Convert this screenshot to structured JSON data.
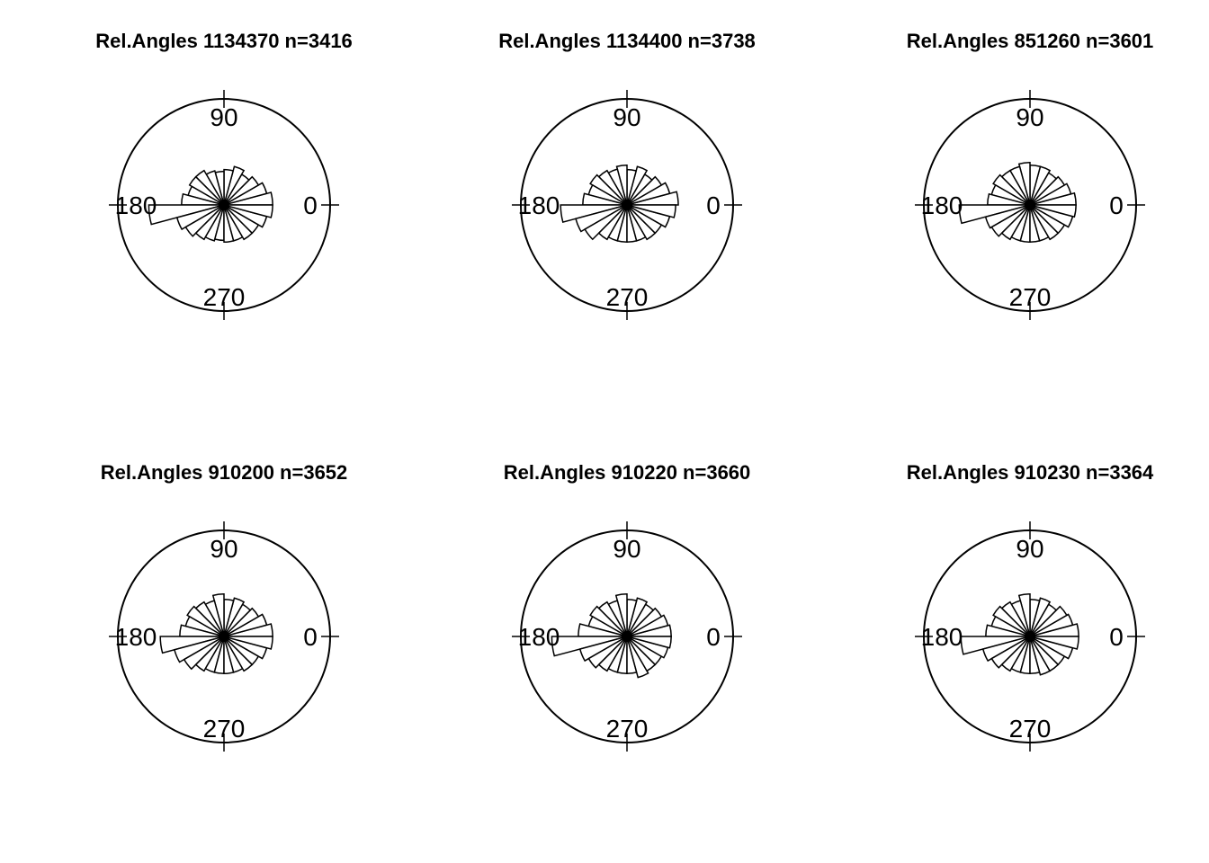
{
  "chart_data": [
    {
      "type": "rose",
      "title": "Rel.Angles 1134370 n=3416",
      "angle_labels": [
        "0",
        "90",
        "180",
        "270"
      ],
      "bin_width_deg": 15,
      "radius_max": 120,
      "values": [
        55,
        50,
        45,
        40,
        45,
        40,
        38,
        40,
        45,
        45,
        42,
        48,
        85,
        55,
        50,
        45,
        42,
        40,
        42,
        42,
        45,
        45,
        50,
        55
      ]
    },
    {
      "type": "rose",
      "title": "Rel.Angles 1134400 n=3738",
      "angle_labels": [
        "0",
        "90",
        "180",
        "270"
      ],
      "bin_width_deg": 15,
      "radius_max": 120,
      "values": [
        58,
        50,
        45,
        40,
        45,
        40,
        45,
        42,
        45,
        48,
        45,
        50,
        75,
        60,
        55,
        45,
        42,
        42,
        42,
        42,
        45,
        45,
        50,
        55
      ]
    },
    {
      "type": "rose",
      "title": "Rel.Angles 851260 n=3601",
      "angle_labels": [
        "0",
        "90",
        "180",
        "270"
      ],
      "bin_width_deg": 15,
      "radius_max": 120,
      "values": [
        52,
        48,
        45,
        42,
        45,
        45,
        48,
        45,
        45,
        48,
        45,
        48,
        80,
        52,
        50,
        45,
        42,
        42,
        42,
        42,
        45,
        45,
        50,
        52
      ]
    },
    {
      "type": "rose",
      "title": "Rel.Angles 910200 n=3652",
      "angle_labels": [
        "0",
        "90",
        "180",
        "270"
      ],
      "bin_width_deg": 15,
      "radius_max": 120,
      "values": [
        55,
        50,
        45,
        42,
        45,
        42,
        48,
        42,
        45,
        48,
        45,
        50,
        72,
        58,
        52,
        45,
        42,
        42,
        42,
        42,
        45,
        45,
        50,
        55
      ]
    },
    {
      "type": "rose",
      "title": "Rel.Angles 910220 n=3660",
      "angle_labels": [
        "0",
        "90",
        "180",
        "270"
      ],
      "bin_width_deg": 15,
      "radius_max": 120,
      "values": [
        50,
        48,
        45,
        42,
        45,
        42,
        48,
        42,
        45,
        48,
        45,
        55,
        85,
        55,
        50,
        45,
        42,
        42,
        42,
        48,
        45,
        45,
        48,
        50
      ]
    },
    {
      "type": "rose",
      "title": "Rel.Angles 910230 n=3364",
      "angle_labels": [
        "0",
        "90",
        "180",
        "270"
      ],
      "bin_width_deg": 15,
      "radius_max": 120,
      "values": [
        55,
        50,
        48,
        42,
        45,
        42,
        48,
        42,
        45,
        48,
        45,
        50,
        78,
        55,
        50,
        45,
        42,
        42,
        42,
        45,
        45,
        45,
        50,
        55
      ]
    }
  ]
}
